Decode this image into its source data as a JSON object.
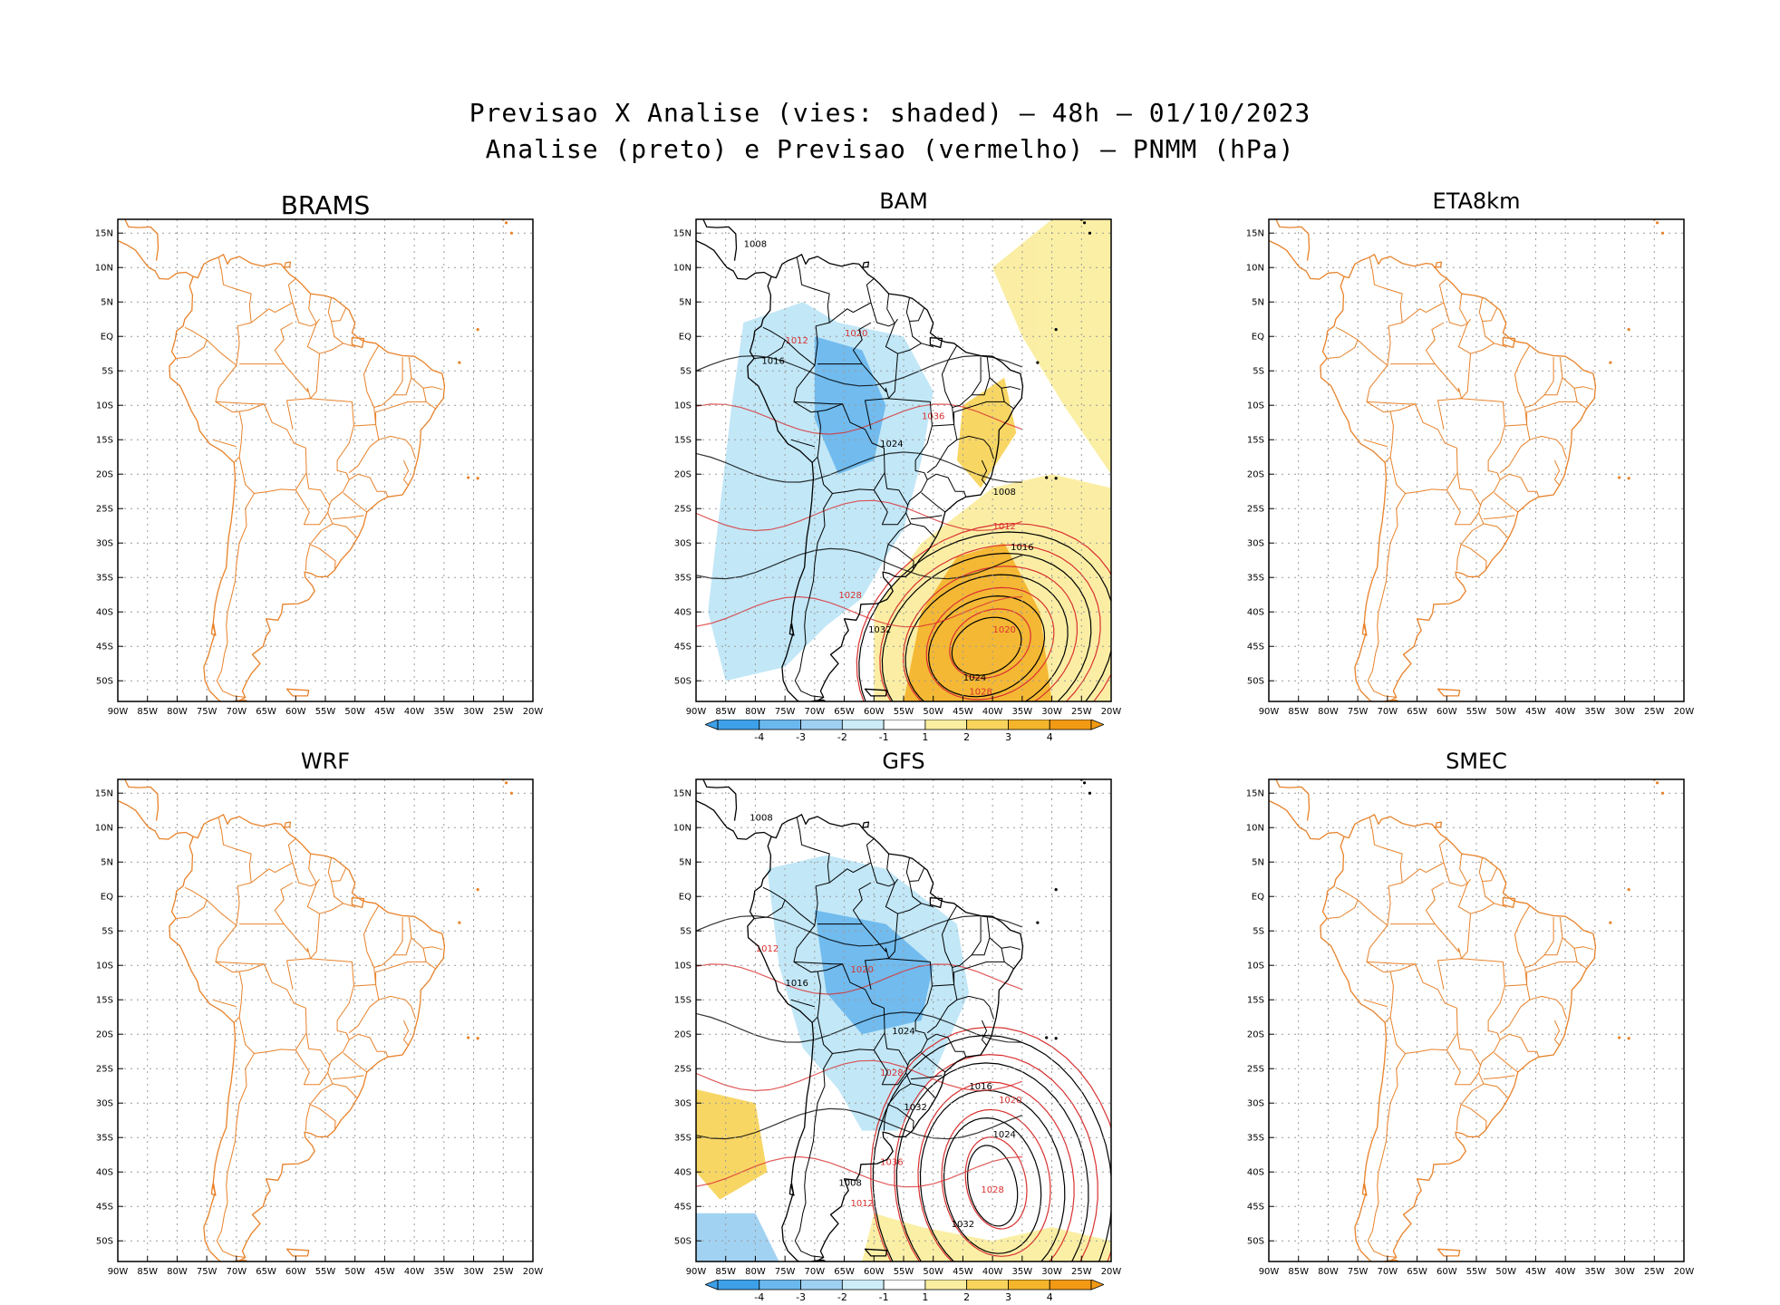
{
  "title": {
    "line1": "Previsao X Analise (vies: shaded) – 48h – 01/10/2023",
    "line2": "Analise (preto) e Previsao (vermelho) – PNMM (hPa)"
  },
  "colors": {
    "coast": "#e8822a",
    "analysis_contour": "#000000",
    "forecast_contour": "#d93030",
    "grid": "#9a9a9a"
  },
  "axes": {
    "lat_labels": [
      "15N",
      "10N",
      "5N",
      "EQ",
      "5S",
      "10S",
      "15S",
      "20S",
      "25S",
      "30S",
      "35S",
      "40S",
      "45S",
      "50S"
    ],
    "lon_labels": [
      "90W",
      "85W",
      "80W",
      "75W",
      "70W",
      "65W",
      "60W",
      "55W",
      "50W",
      "45W",
      "40W",
      "35W",
      "30W",
      "25W",
      "20W"
    ]
  },
  "panels": [
    {
      "id": "brams",
      "title": "BRAMS",
      "shaded": false,
      "contour_labels": []
    },
    {
      "id": "bam",
      "title": "BAM",
      "shaded": true,
      "contour_labels": [
        "1008",
        "1012",
        "1016",
        "1020",
        "1024",
        "1028",
        "1032",
        "1036"
      ]
    },
    {
      "id": "eta",
      "title": "ETA8km",
      "shaded": false,
      "contour_labels": []
    },
    {
      "id": "wrf",
      "title": "WRF",
      "shaded": false,
      "contour_labels": []
    },
    {
      "id": "gfs",
      "title": "GFS",
      "shaded": true,
      "contour_labels": [
        "1008",
        "1012",
        "1016",
        "1020",
        "1024",
        "1028",
        "1032",
        "1036"
      ]
    },
    {
      "id": "smec",
      "title": "SMEC",
      "shaded": false,
      "contour_labels": []
    }
  ],
  "colorbar": {
    "labels": [
      "-4",
      "-3",
      "-2",
      "-1",
      "1",
      "2",
      "3",
      "4"
    ],
    "colors": [
      "#3da0e8",
      "#6ab8ee",
      "#9ed0f2",
      "#ccecf8",
      "#ffffff",
      "#fbeea0",
      "#f8d45c",
      "#f4b52a",
      "#f29a14"
    ]
  }
}
